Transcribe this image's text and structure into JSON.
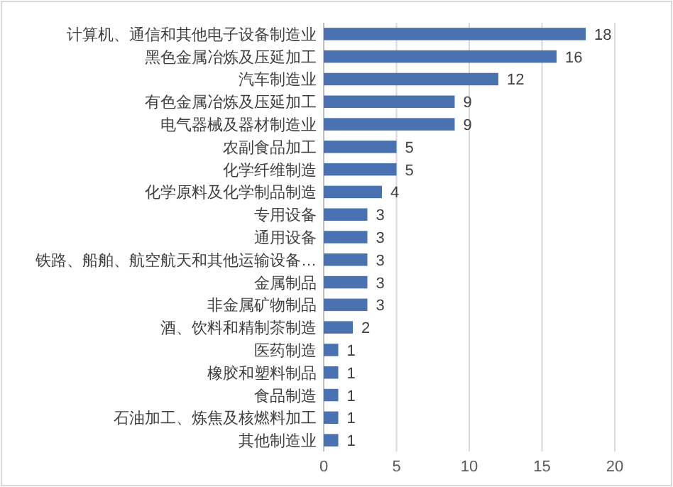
{
  "chart_data": {
    "type": "bar",
    "orientation": "horizontal",
    "categories": [
      "计算机、通信和其他电子设备制造业",
      "黑色金属冶炼及压延加工",
      "汽车制造业",
      "有色金属冶炼及压延加工",
      "电气器械及器材制造业",
      "农副食品加工",
      "化学纤维制造",
      "化学原料及化学制品制造",
      "专用设备",
      "通用设备",
      "铁路、船舶、航空航天和其他运输设备…",
      "金属制品",
      "非金属矿物制品",
      "酒、饮料和精制茶制造",
      "医药制造",
      "橡胶和塑料制品",
      "食品制造",
      "石油加工、炼焦及核燃料加工",
      "其他制造业"
    ],
    "values": [
      18,
      16,
      12,
      9,
      9,
      5,
      5,
      4,
      3,
      3,
      3,
      3,
      3,
      2,
      1,
      1,
      1,
      1,
      1
    ],
    "color": "#4a72b0",
    "xlim": [
      0,
      20
    ],
    "xticks": [
      0,
      5,
      10,
      15,
      20
    ],
    "grid": "x",
    "data_labels": true
  }
}
